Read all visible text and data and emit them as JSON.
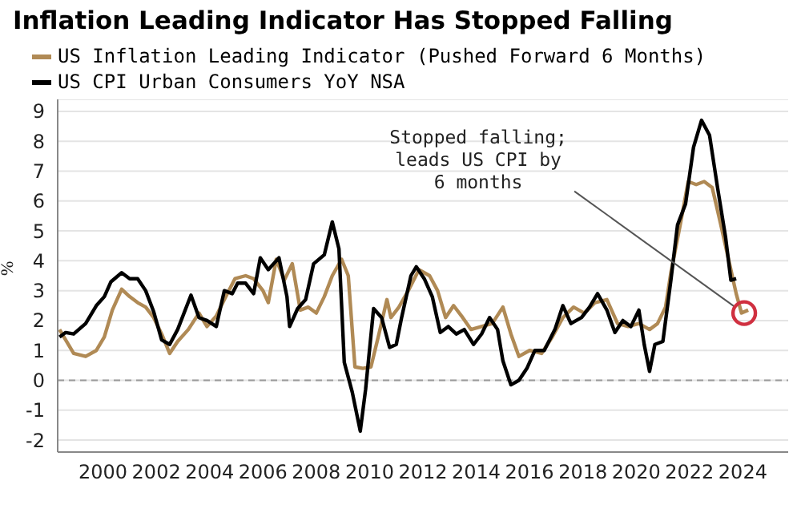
{
  "chart_data": {
    "type": "line",
    "title": "Inflation Leading Indicator Has Stopped Falling",
    "ylabel": "%",
    "xlim": [
      1998.3,
      2025.7
    ],
    "xticks": [
      2000,
      2002,
      2004,
      2006,
      2008,
      2010,
      2012,
      2014,
      2016,
      2018,
      2020,
      2022,
      2024
    ],
    "ylim": [
      -2.4,
      9.4
    ],
    "yticks": [
      -2,
      -1,
      0,
      1,
      2,
      3,
      4,
      5,
      6,
      7,
      8,
      9
    ],
    "grid": "y",
    "legend": "top left",
    "marker": "none",
    "line_style": "solid",
    "ref_lines": [
      {
        "axis": "y",
        "value": 0,
        "color": "#9a9a9a",
        "line_style": "dashed"
      }
    ],
    "annotations": [
      {
        "text": "Stopped falling;\nleads US CPI by\n6 months",
        "x": 2024.05,
        "y": 2.25
      }
    ],
    "series": [
      {
        "name": "US Inflation Leading Indicator (Pushed Forward 6 Months)",
        "color": "#b08a55",
        "x": [
          1998.37,
          1998.6,
          1998.9,
          1999.35,
          1999.75,
          2000.05,
          2000.35,
          2000.7,
          2001.0,
          2001.3,
          2001.6,
          2001.9,
          2002.2,
          2002.5,
          2002.8,
          2003.2,
          2003.6,
          2003.9,
          2004.25,
          2004.55,
          2004.95,
          2005.35,
          2005.65,
          2006.0,
          2006.2,
          2006.5,
          2006.8,
          2007.1,
          2007.4,
          2007.7,
          2008.0,
          2008.3,
          2008.6,
          2008.95,
          2009.2,
          2009.45,
          2009.75,
          2010.05,
          2010.35,
          2010.65,
          2010.8,
          2011.1,
          2011.45,
          2011.85,
          2012.25,
          2012.55,
          2012.85,
          2013.15,
          2013.45,
          2013.8,
          2014.2,
          2014.6,
          2015.0,
          2015.3,
          2015.6,
          2016.0,
          2016.45,
          2016.85,
          2017.25,
          2017.65,
          2018.05,
          2018.45,
          2018.9,
          2019.3,
          2019.7,
          2020.1,
          2020.5,
          2020.8,
          2021.1,
          2021.3,
          2021.65,
          2021.95,
          2022.25,
          2022.55,
          2022.85,
          2023.15,
          2023.55,
          2023.75,
          2023.95,
          2024.2
        ],
        "values": [
          1.7,
          1.35,
          0.9,
          0.8,
          1.0,
          1.45,
          2.35,
          3.05,
          2.8,
          2.6,
          2.45,
          2.1,
          1.55,
          0.9,
          1.3,
          1.7,
          2.25,
          1.8,
          2.15,
          2.7,
          3.4,
          3.5,
          3.4,
          3.0,
          2.6,
          4.05,
          3.35,
          3.9,
          2.35,
          2.45,
          2.25,
          2.8,
          3.5,
          4.05,
          3.5,
          0.45,
          0.4,
          0.45,
          1.55,
          2.7,
          2.1,
          2.45,
          3.0,
          3.7,
          3.5,
          3.0,
          2.1,
          2.5,
          2.15,
          1.7,
          1.8,
          1.9,
          2.45,
          1.55,
          0.8,
          1.0,
          0.9,
          1.45,
          2.1,
          2.45,
          2.25,
          2.6,
          2.7,
          1.9,
          1.8,
          1.9,
          1.7,
          1.9,
          2.45,
          3.6,
          5.2,
          6.65,
          6.55,
          6.65,
          6.45,
          5.3,
          3.7,
          2.9,
          2.25,
          2.35
        ]
      },
      {
        "name": "US CPI Urban Consumers YoY NSA",
        "color": "#000000",
        "x": [
          1998.37,
          1998.6,
          1998.9,
          1999.35,
          1999.75,
          2000.05,
          2000.3,
          2000.7,
          2001.0,
          2001.3,
          2001.6,
          2001.9,
          2002.2,
          2002.5,
          2002.8,
          2003.3,
          2003.6,
          2003.9,
          2004.25,
          2004.55,
          2004.85,
          2005.05,
          2005.35,
          2005.65,
          2005.9,
          2006.2,
          2006.6,
          2006.9,
          2007.0,
          2007.3,
          2007.6,
          2007.9,
          2008.3,
          2008.6,
          2008.85,
          2009.05,
          2009.35,
          2009.65,
          2009.85,
          2010.15,
          2010.45,
          2010.75,
          2011.0,
          2011.2,
          2011.55,
          2011.75,
          2012.05,
          2012.35,
          2012.65,
          2012.95,
          2013.25,
          2013.55,
          2013.9,
          2014.2,
          2014.5,
          2014.8,
          2015.0,
          2015.3,
          2015.6,
          2015.9,
          2016.2,
          2016.55,
          2016.95,
          2017.25,
          2017.55,
          2017.95,
          2018.25,
          2018.55,
          2018.9,
          2019.2,
          2019.5,
          2019.8,
          2020.1,
          2020.3,
          2020.5,
          2020.7,
          2021.0,
          2021.3,
          2021.55,
          2021.85,
          2022.15,
          2022.45,
          2022.75,
          2023.05,
          2023.35,
          2023.55,
          2023.75
        ],
        "values": [
          1.45,
          1.6,
          1.55,
          1.9,
          2.5,
          2.8,
          3.3,
          3.6,
          3.4,
          3.4,
          3.0,
          2.3,
          1.35,
          1.2,
          1.7,
          2.85,
          2.1,
          2.0,
          1.8,
          3.0,
          2.9,
          3.25,
          3.25,
          2.9,
          4.1,
          3.7,
          4.1,
          2.8,
          1.8,
          2.4,
          2.7,
          3.9,
          4.2,
          5.3,
          4.4,
          0.6,
          -0.4,
          -1.7,
          -0.3,
          2.4,
          2.1,
          1.1,
          1.2,
          2.1,
          3.5,
          3.8,
          3.4,
          2.8,
          1.6,
          1.8,
          1.55,
          1.7,
          1.2,
          1.55,
          2.1,
          1.7,
          0.65,
          -0.15,
          0.0,
          0.4,
          1.0,
          1.0,
          1.7,
          2.5,
          1.9,
          2.1,
          2.45,
          2.9,
          2.35,
          1.6,
          2.0,
          1.8,
          2.35,
          1.2,
          0.3,
          1.2,
          1.3,
          3.35,
          5.2,
          5.9,
          7.8,
          8.7,
          8.2,
          6.45,
          4.8,
          3.35,
          3.4
        ]
      }
    ]
  }
}
